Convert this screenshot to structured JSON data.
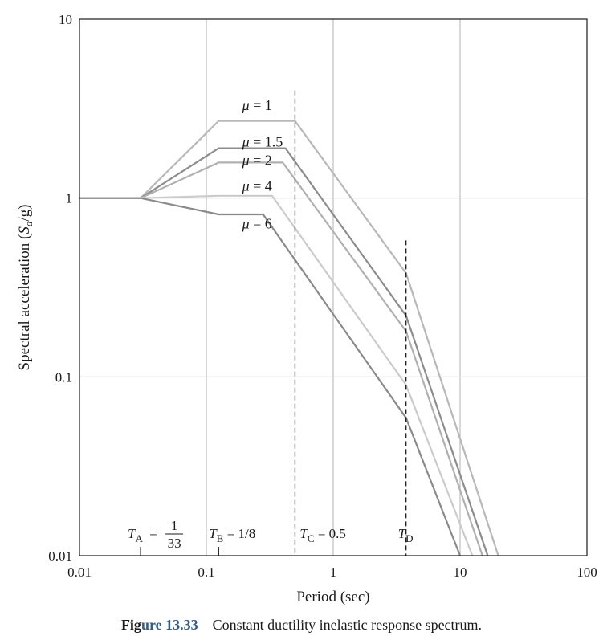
{
  "chart_data": {
    "type": "line",
    "xscale": "log",
    "yscale": "log",
    "xlim": [
      0.01,
      100
    ],
    "ylim": [
      0.01,
      10
    ],
    "grid": true,
    "xlabel": "Period (sec)",
    "ylabel_main": "Spectral acceleration (",
    "ylabel_var": "S",
    "ylabel_sub": "a",
    "ylabel_end": "/g)",
    "x_ticks": [
      0.01,
      0.1,
      1,
      10,
      100
    ],
    "x_tick_labels": [
      "0.01",
      "0.1",
      "1",
      "10",
      "100"
    ],
    "y_ticks": [
      0.01,
      0.1,
      1,
      10
    ],
    "y_tick_labels": [
      "0.01",
      "0.1",
      "1",
      "10"
    ],
    "series": [
      {
        "name": "μ = 1",
        "color": "#b8b8b8",
        "x": [
          0.01,
          0.0303,
          0.125,
          0.5,
          3.75,
          20
        ],
        "y": [
          1.0,
          1.0,
          2.7,
          2.7,
          0.38,
          0.01
        ]
      },
      {
        "name": "μ = 1.5",
        "color": "#8c8c8c",
        "x": [
          0.01,
          0.0303,
          0.125,
          0.42,
          3.75,
          16.5
        ],
        "y": [
          1.0,
          1.0,
          1.9,
          1.9,
          0.22,
          0.01
        ]
      },
      {
        "name": "μ = 2",
        "color": "#b0b0b0",
        "x": [
          0.01,
          0.0303,
          0.125,
          0.4,
          3.75,
          15
        ],
        "y": [
          1.0,
          1.0,
          1.58,
          1.58,
          0.18,
          0.01
        ]
      },
      {
        "name": "μ = 4",
        "color": "#cbcbcb",
        "x": [
          0.01,
          0.0303,
          0.125,
          0.33,
          3.75,
          12.5
        ],
        "y": [
          1.0,
          1.0,
          1.03,
          1.03,
          0.09,
          0.01
        ]
      },
      {
        "name": "μ = 6",
        "color": "#8a8a8a",
        "x": [
          0.01,
          0.0303,
          0.125,
          0.28,
          3.75,
          10.0
        ],
        "y": [
          1.0,
          1.0,
          0.81,
          0.81,
          0.059,
          0.01
        ]
      }
    ],
    "mu_labels": [
      {
        "text": "μ = 1",
        "x": 0.135,
        "y": 3.3
      },
      {
        "text": "μ = 1.5",
        "x": 0.135,
        "y": 2.07
      },
      {
        "text": "μ = 2",
        "x": 0.135,
        "y": 1.63
      },
      {
        "text": "μ = 4",
        "x": 0.135,
        "y": 1.17
      },
      {
        "text": "μ = 6",
        "x": 0.135,
        "y": 0.72
      }
    ],
    "verticals": [
      {
        "x": 0.5,
        "y_top": 4.0
      },
      {
        "x": 3.75,
        "y_top": 0.58
      }
    ],
    "annotations": {
      "ta_var": "T",
      "ta_sub": "A",
      "ta_eq": "=",
      "ta_num": "1",
      "ta_den": "33",
      "ta_x": 0.0303,
      "tb_var": "T",
      "tb_sub": "B",
      "tb_rest": "= 1/8",
      "tb_x": 0.125,
      "tc_var": "T",
      "tc_sub": "C",
      "tc_rest": "= 0.5",
      "tc_x": 0.5,
      "td_var": "T",
      "td_sub": "D",
      "td_x": 3.75
    }
  },
  "caption": {
    "label_a": "Fig",
    "label_b": "ure 13.33",
    "text": "Constant ductility inelastic response spectrum."
  }
}
